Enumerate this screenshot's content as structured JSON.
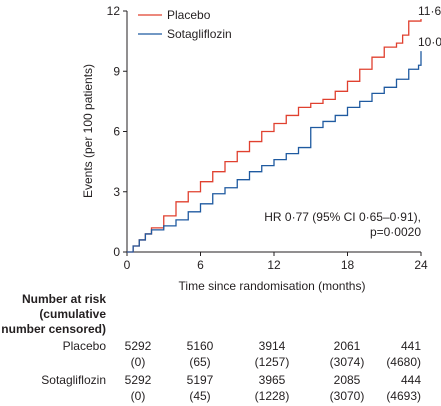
{
  "chart_data": {
    "type": "line",
    "xlabel": "Time since randomisation (months)",
    "ylabel": "Events (per 100 patients)",
    "xlim": [
      0,
      24
    ],
    "ylim": [
      0,
      12
    ],
    "x_ticks": [
      "0",
      "6",
      "12",
      "18",
      "24"
    ],
    "y_ticks": [
      "0",
      "3",
      "6",
      "9",
      "12"
    ],
    "grid": false,
    "legend_position": "top-left",
    "series": [
      {
        "name": "Placebo",
        "color": "#e0402f",
        "end_label": "11·6",
        "points": [
          [
            0,
            0
          ],
          [
            0.5,
            0.3
          ],
          [
            1,
            0.6
          ],
          [
            1.5,
            0.9
          ],
          [
            2,
            1.2
          ],
          [
            3,
            1.8
          ],
          [
            4,
            2.5
          ],
          [
            5,
            3.0
          ],
          [
            6,
            3.5
          ],
          [
            7,
            4.0
          ],
          [
            8,
            4.5
          ],
          [
            9,
            5.0
          ],
          [
            10,
            5.5
          ],
          [
            11,
            6.0
          ],
          [
            12,
            6.4
          ],
          [
            13,
            6.8
          ],
          [
            14,
            7.2
          ],
          [
            15,
            7.4
          ],
          [
            16,
            7.6
          ],
          [
            17,
            8.0
          ],
          [
            18,
            8.5
          ],
          [
            19,
            9.1
          ],
          [
            20,
            9.7
          ],
          [
            21,
            10.2
          ],
          [
            22,
            10.4
          ],
          [
            22.5,
            10.8
          ],
          [
            23,
            11.5
          ],
          [
            24,
            11.6
          ]
        ]
      },
      {
        "name": "Sotagliflozin",
        "color": "#1f5aa0",
        "end_label": "10·0",
        "points": [
          [
            0,
            0
          ],
          [
            0.5,
            0.3
          ],
          [
            1,
            0.6
          ],
          [
            1.5,
            0.9
          ],
          [
            2,
            1.1
          ],
          [
            3,
            1.3
          ],
          [
            4,
            1.6
          ],
          [
            5,
            2.0
          ],
          [
            6,
            2.4
          ],
          [
            7,
            2.9
          ],
          [
            8,
            3.2
          ],
          [
            9,
            3.6
          ],
          [
            10,
            4.0
          ],
          [
            11,
            4.3
          ],
          [
            12,
            4.6
          ],
          [
            13,
            4.9
          ],
          [
            14,
            5.2
          ],
          [
            15,
            6.2
          ],
          [
            16,
            6.5
          ],
          [
            17,
            6.8
          ],
          [
            18,
            7.2
          ],
          [
            19,
            7.5
          ],
          [
            20,
            7.9
          ],
          [
            21,
            8.2
          ],
          [
            22,
            8.6
          ],
          [
            23,
            9.1
          ],
          [
            23.8,
            9.3
          ],
          [
            24,
            10.0
          ]
        ]
      }
    ],
    "annotation": {
      "line1": "HR 0·77 (95% CI 0·65–0·91),",
      "line2": "p=0·0020"
    }
  },
  "risk_table": {
    "title_line1": "Number at risk",
    "title_line2": "(cumulative",
    "title_line3": "number censored)",
    "rows": [
      {
        "label": "Placebo",
        "at_risk": [
          "5292",
          "5160",
          "3914",
          "2061",
          "441"
        ],
        "censored": [
          "(0)",
          "(65)",
          "(1257)",
          "(3074)",
          "(4680)"
        ]
      },
      {
        "label": "Sotagliflozin",
        "at_risk": [
          "5292",
          "5197",
          "3965",
          "2085",
          "444"
        ],
        "censored": [
          "(0)",
          "(45)",
          "(1228)",
          "(3070)",
          "(4693)"
        ]
      }
    ]
  }
}
